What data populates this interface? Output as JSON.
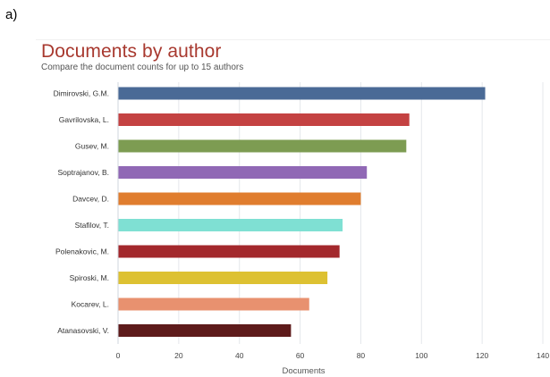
{
  "panel_label": "a)",
  "chart_data": {
    "type": "bar",
    "orientation": "horizontal",
    "title": "Documents by author",
    "subtitle": "Compare the document counts for up to 15 authors",
    "xlabel": "Documents",
    "ylabel": "",
    "xlim": [
      0,
      140
    ],
    "xticks": [
      0,
      20,
      40,
      60,
      80,
      100,
      120,
      140
    ],
    "grid": true,
    "categories": [
      "Dimirovski, G.M.",
      "Gavrilovska, L.",
      "Gusev, M.",
      "Soptrajanov, B.",
      "Davcev, D.",
      "Stafilov, T.",
      "Polenakovic, M.",
      "Spiroski, M.",
      "Kocarev, L.",
      "Atanasovski, V."
    ],
    "values": [
      121,
      96,
      95,
      82,
      80,
      74,
      73,
      69,
      63,
      57
    ],
    "colors": [
      "#4a6a96",
      "#c44242",
      "#7d9c52",
      "#9068b5",
      "#e07d2e",
      "#7fe0d3",
      "#a3282c",
      "#ddc132",
      "#e8916f",
      "#5e1b1b"
    ]
  }
}
